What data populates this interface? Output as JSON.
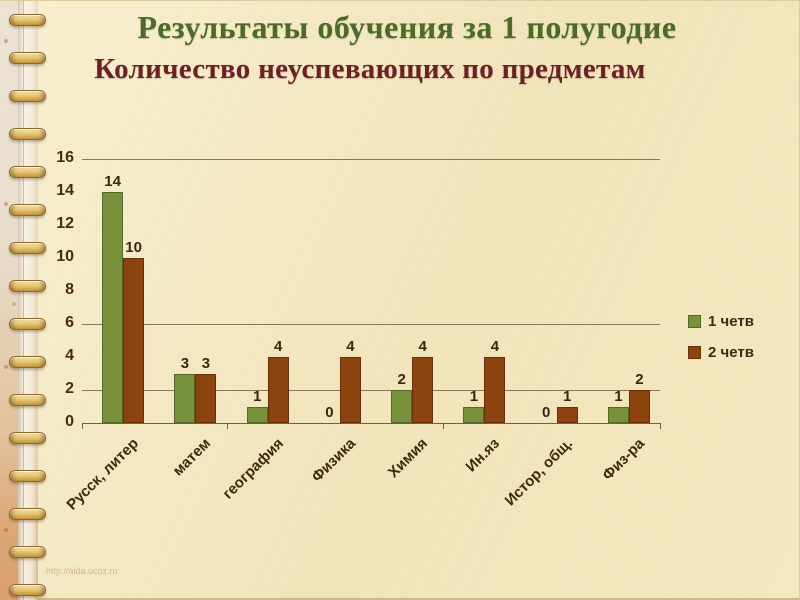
{
  "slide": {
    "title": "Результаты обучения за 1 полугодие",
    "subtitle": "Количество неуспевающих по предметам",
    "watermark": "http://aida.ucoz.ru"
  },
  "chart_data": {
    "type": "bar",
    "title": "Количество неуспевающих по предметам",
    "categories": [
      "Русск, литер",
      "матем",
      "география",
      "Физика",
      "Химия",
      "Ин.яз",
      "Истор, общ.",
      "Физ-ра"
    ],
    "series": [
      {
        "name": "1 четв",
        "color": "#78913b",
        "border_color": "#55682a",
        "values": [
          14,
          3,
          1,
          0,
          2,
          1,
          0,
          1
        ]
      },
      {
        "name": "2 четв",
        "color": "#8d430f",
        "border_color": "#66300a",
        "values": [
          10,
          3,
          4,
          4,
          4,
          4,
          1,
          2
        ]
      }
    ],
    "ylim": [
      0,
      16
    ],
    "ytick_step": 2,
    "ytick_labels": [
      "0",
      "2",
      "4",
      "6",
      "8",
      "10",
      "12",
      "14",
      "16"
    ],
    "gridlines_at": [
      16,
      6,
      2
    ],
    "grid": "horizontal-partial",
    "legend_position": "right",
    "data_labels": true,
    "xlabel": "",
    "ylabel": ""
  },
  "colors": {
    "title": "#4d6a29",
    "subtitle": "#6c2127",
    "background": "#f4e9c3",
    "axis_text": "#4a2a16"
  }
}
